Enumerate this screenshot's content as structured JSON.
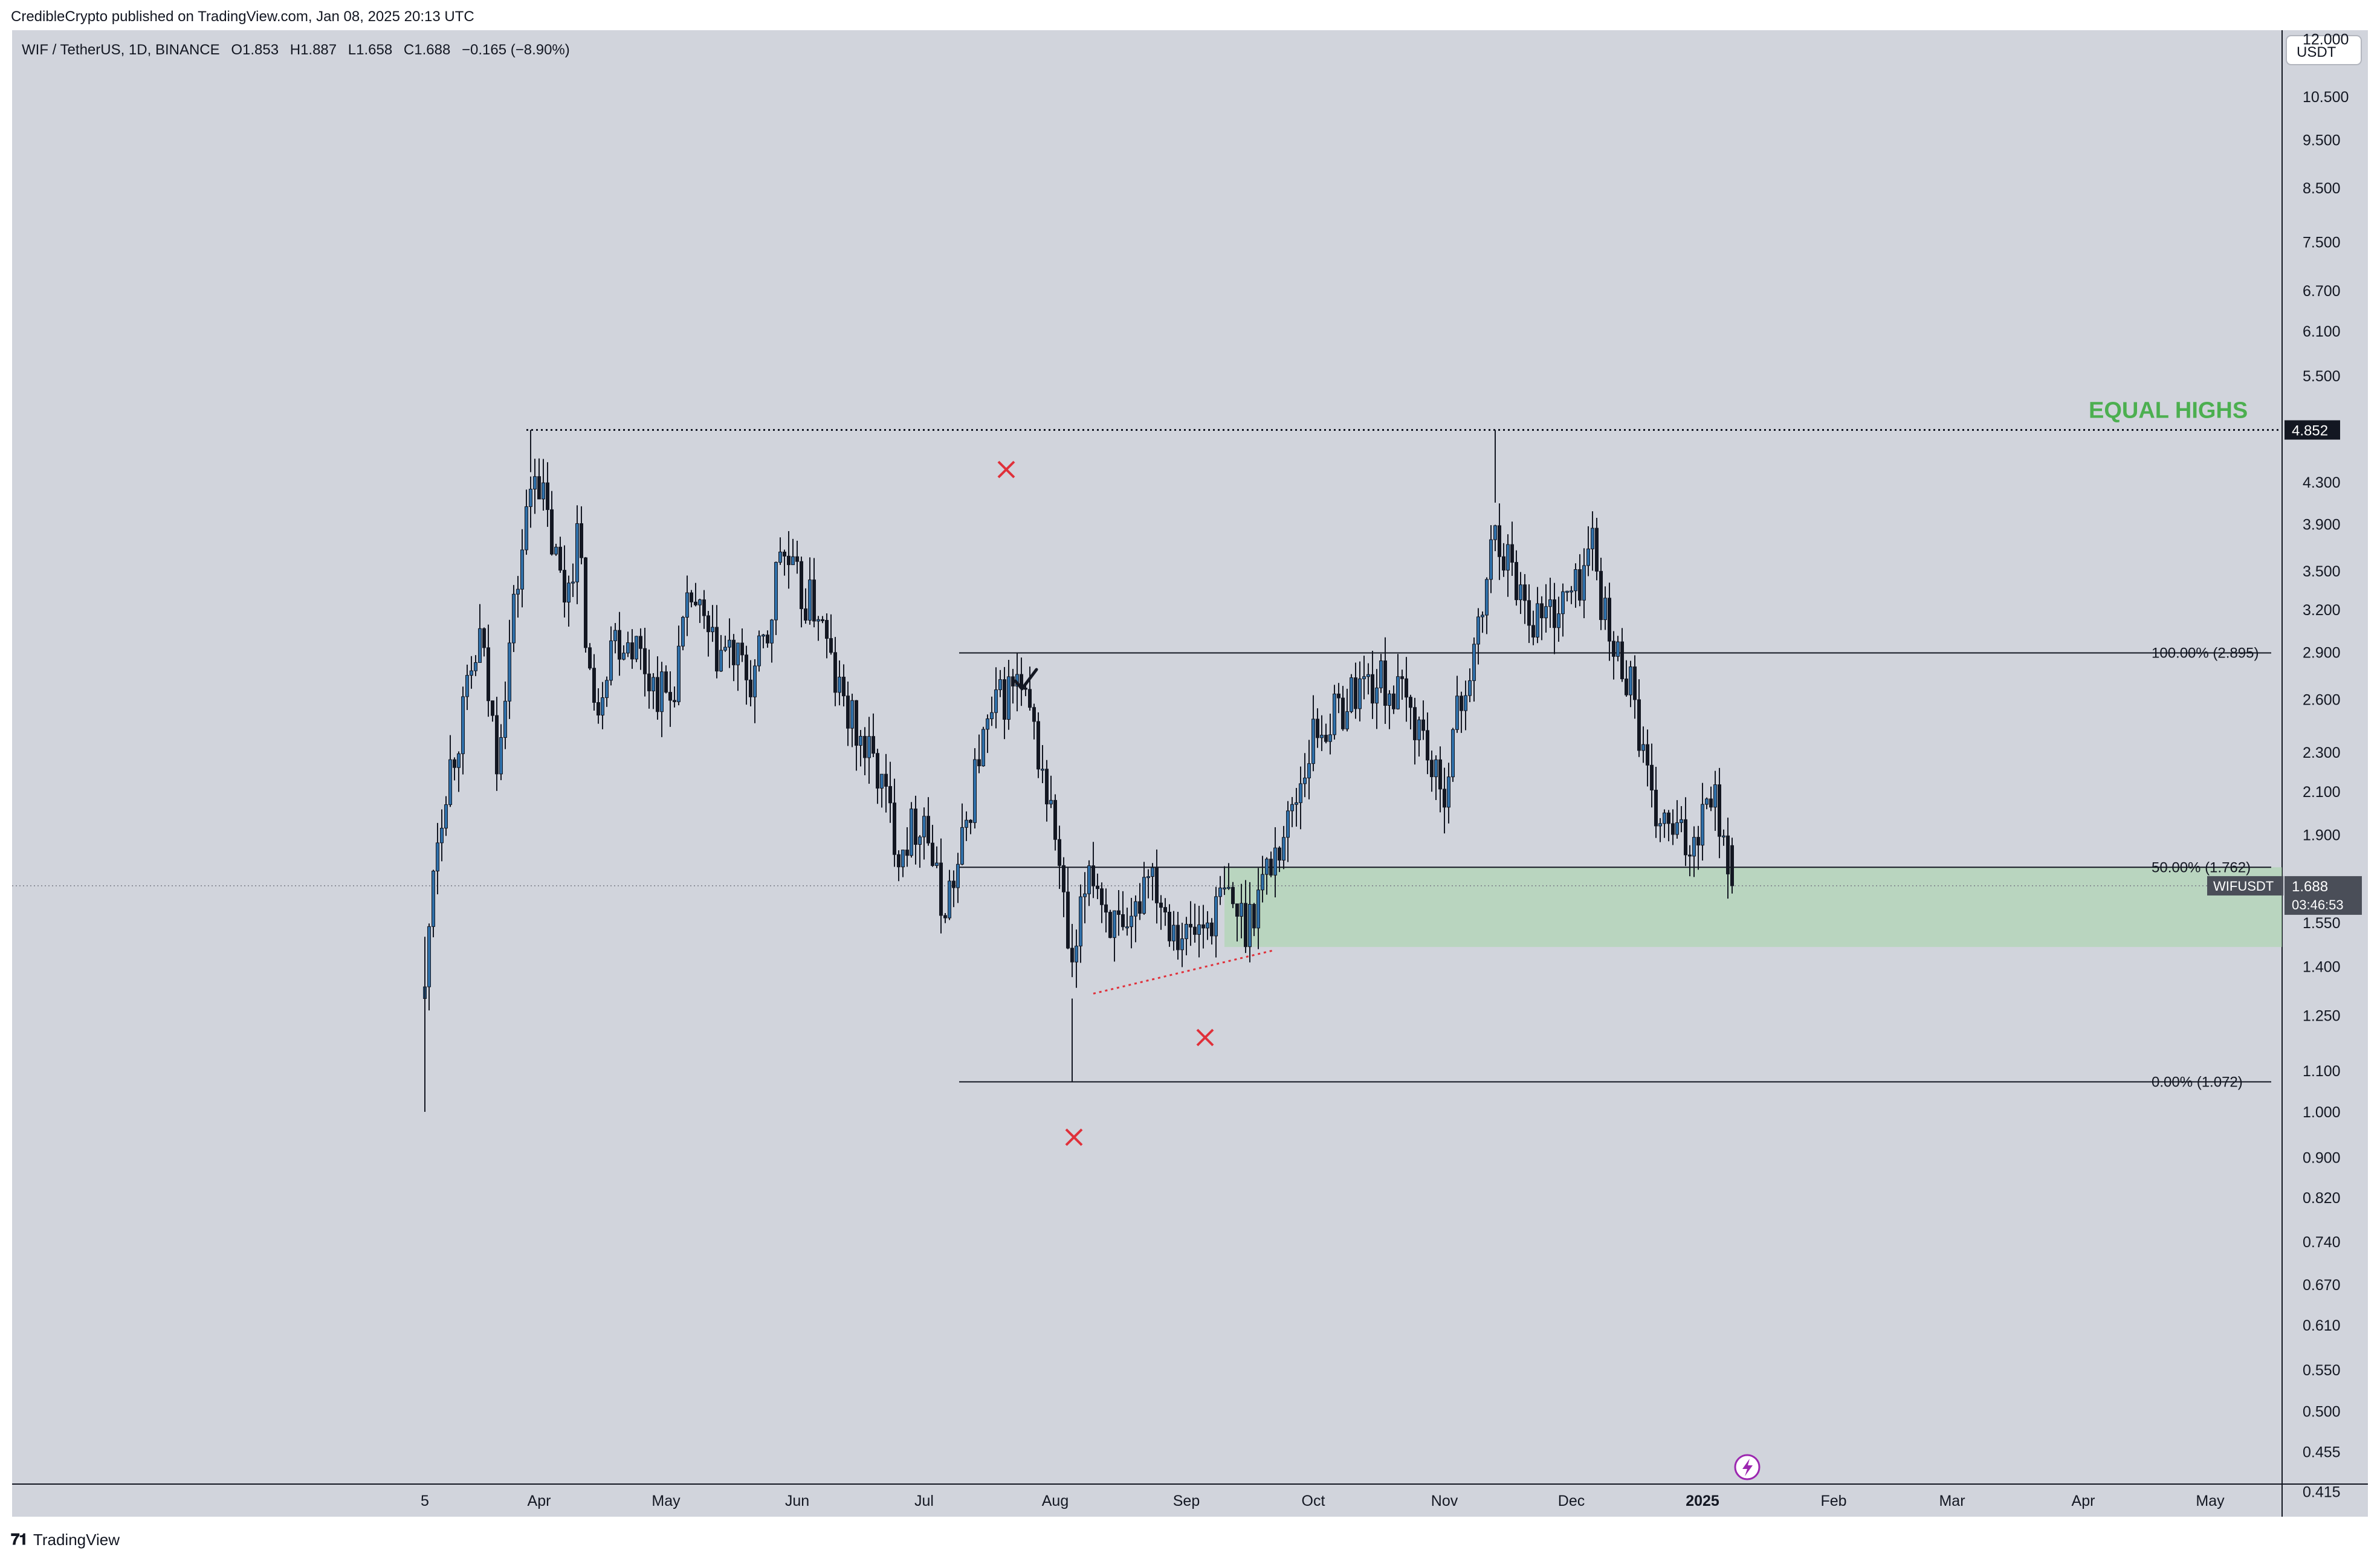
{
  "header": {
    "published_by": "CredibleCrypto published on TradingView.com, Jan 08, 2025 20:13 UTC"
  },
  "footer": {
    "brand": "TradingView"
  },
  "symbol_info": {
    "pair": "WIF / TetherUS, 1D, BINANCE",
    "open_label": "O",
    "open": "1.853",
    "high_label": "H",
    "high": "1.887",
    "low_label": "L",
    "low": "1.658",
    "close_label": "C",
    "close": "1.688",
    "change": "−0.165 (−8.90%)"
  },
  "price_scale": {
    "currency_button": "USDT",
    "ticks": [
      "12.000",
      "10.500",
      "9.500",
      "8.500",
      "7.500",
      "6.700",
      "6.100",
      "5.500",
      "4.300",
      "3.900",
      "3.500",
      "3.200",
      "2.900",
      "2.600",
      "2.300",
      "2.100",
      "1.900",
      "1.550",
      "1.400",
      "1.250",
      "1.100",
      "1.000",
      "0.900",
      "0.820",
      "0.740",
      "0.670",
      "0.610",
      "0.550",
      "0.500",
      "0.455",
      "0.415"
    ],
    "equal_highs_badge": "4.852",
    "last_price_symbol": "WIFUSDT",
    "last_price": "1.688",
    "countdown": "03:46:53"
  },
  "annotations": {
    "equal_highs": "EQUAL HIGHS",
    "fib_100": "100.00% (2.895)",
    "fib_50": "50.00% (1.762)",
    "fib_0": "0.00% (1.072)"
  },
  "colors": {
    "background": "#d1d4dc",
    "candle": "#131722",
    "equal_highs_text": "#4caf50",
    "zone_fill": "#a5d6a7",
    "x_marker": "#e0303a",
    "trendline": "#e0303a"
  },
  "icons": {
    "check_marker": "checkmark-icon",
    "x_marker": "x-mark-icon",
    "bolt": "lightning-bolt-icon"
  },
  "chart_data": {
    "type": "candlestick",
    "title": "WIF / TetherUS, 1D, BINANCE",
    "x_tick_labels": [
      "5",
      "Apr",
      "May",
      "Jun",
      "Jul",
      "Aug",
      "Sep",
      "Oct",
      "Nov",
      "Dec",
      "2025",
      "Feb",
      "Mar",
      "Apr",
      "May"
    ],
    "y_scale": "log",
    "ylim": [
      0.4,
      13.5
    ],
    "price_path": [
      [
        "2024-03-05",
        1.3
      ],
      [
        "2024-03-07",
        1.8
      ],
      [
        "2024-03-10",
        2.15
      ],
      [
        "2024-03-14",
        2.5
      ],
      [
        "2024-03-18",
        3.0
      ],
      [
        "2024-03-22",
        2.3
      ],
      [
        "2024-03-26",
        3.2
      ],
      [
        "2024-03-31",
        4.55
      ],
      [
        "2024-04-03",
        3.9
      ],
      [
        "2024-04-07",
        3.3
      ],
      [
        "2024-04-10",
        3.8
      ],
      [
        "2024-04-14",
        2.5
      ],
      [
        "2024-04-18",
        3.0
      ],
      [
        "2024-04-23",
        3.0
      ],
      [
        "2024-04-28",
        2.7
      ],
      [
        "2024-05-02",
        2.6
      ],
      [
        "2024-05-07",
        3.3
      ],
      [
        "2024-05-12",
        2.9
      ],
      [
        "2024-05-16",
        2.9
      ],
      [
        "2024-05-21",
        2.7
      ],
      [
        "2024-05-25",
        3.0
      ],
      [
        "2024-05-28",
        3.7
      ],
      [
        "2024-06-02",
        3.3
      ],
      [
        "2024-06-06",
        3.2
      ],
      [
        "2024-06-10",
        2.7
      ],
      [
        "2024-06-15",
        2.4
      ],
      [
        "2024-06-20",
        2.2
      ],
      [
        "2024-06-25",
        1.85
      ],
      [
        "2024-07-01",
        2.0
      ],
      [
        "2024-07-05",
        1.6
      ],
      [
        "2024-07-09",
        1.75
      ],
      [
        "2024-07-14",
        2.3
      ],
      [
        "2024-07-19",
        2.6
      ],
      [
        "2024-07-23",
        2.7
      ],
      [
        "2024-07-27",
        2.4
      ],
      [
        "2024-08-01",
        1.9
      ],
      [
        "2024-08-05",
        1.35
      ],
      [
        "2024-08-09",
        1.8
      ],
      [
        "2024-08-13",
        1.6
      ],
      [
        "2024-08-18",
        1.45
      ],
      [
        "2024-08-23",
        1.8
      ],
      [
        "2024-08-27",
        1.6
      ],
      [
        "2024-09-01",
        1.5
      ],
      [
        "2024-09-06",
        1.55
      ],
      [
        "2024-09-10",
        1.65
      ],
      [
        "2024-09-15",
        1.55
      ],
      [
        "2024-09-20",
        1.75
      ],
      [
        "2024-09-25",
        1.95
      ],
      [
        "2024-10-01",
        2.4
      ],
      [
        "2024-10-06",
        2.5
      ],
      [
        "2024-10-12",
        2.7
      ],
      [
        "2024-10-17",
        2.7
      ],
      [
        "2024-10-22",
        2.6
      ],
      [
        "2024-10-27",
        2.4
      ],
      [
        "2024-10-31",
        2.05
      ],
      [
        "2024-11-04",
        2.5
      ],
      [
        "2024-11-09",
        3.0
      ],
      [
        "2024-11-13",
        3.9
      ],
      [
        "2024-11-17",
        3.5
      ],
      [
        "2024-11-22",
        3.15
      ],
      [
        "2024-11-27",
        3.2
      ],
      [
        "2024-12-02",
        3.35
      ],
      [
        "2024-12-06",
        3.75
      ],
      [
        "2024-12-10",
        2.95
      ],
      [
        "2024-12-15",
        2.75
      ],
      [
        "2024-12-20",
        2.0
      ],
      [
        "2024-12-25",
        1.9
      ],
      [
        "2024-12-29",
        1.85
      ],
      [
        "2025-01-03",
        2.15
      ],
      [
        "2025-01-06",
        1.9
      ],
      [
        "2025-01-08",
        1.688
      ]
    ],
    "levels": {
      "equal_highs": 4.852,
      "fib_100": 2.895,
      "fib_50": 1.762,
      "fib_0": 1.072,
      "zone": [
        1.465,
        1.762
      ]
    },
    "last": {
      "open": 1.853,
      "high": 1.887,
      "low": 1.658,
      "close": 1.688
    }
  }
}
